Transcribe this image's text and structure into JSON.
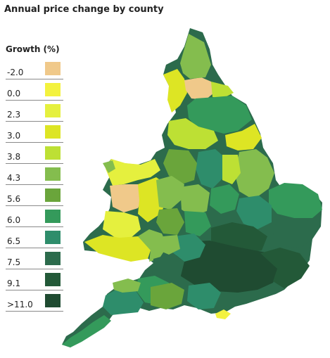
{
  "title": "Annual price change by county",
  "legend": {
    "title": "Growth (%)",
    "items": [
      {
        "label": "-2.0",
        "color": "#f0c98a"
      },
      {
        "label": "0.0",
        "color": "#f3f23e"
      },
      {
        "label": "2.3",
        "color": "#e5f03e"
      },
      {
        "label": "3.0",
        "color": "#dde524"
      },
      {
        "label": "3.8",
        "color": "#bde034"
      },
      {
        "label": "4.3",
        "color": "#84bd4e"
      },
      {
        "label": "5.6",
        "color": "#6aa53b"
      },
      {
        "label": "6.0",
        "color": "#349a5b"
      },
      {
        "label": "6.5",
        "color": "#2e8d6b"
      },
      {
        "label": "7.5",
        "color": "#2c6b4c"
      },
      {
        "label": "9.1",
        "color": "#235938"
      },
      {
        "label": ">11.0",
        "color": "#1f4b31"
      }
    ]
  }
}
